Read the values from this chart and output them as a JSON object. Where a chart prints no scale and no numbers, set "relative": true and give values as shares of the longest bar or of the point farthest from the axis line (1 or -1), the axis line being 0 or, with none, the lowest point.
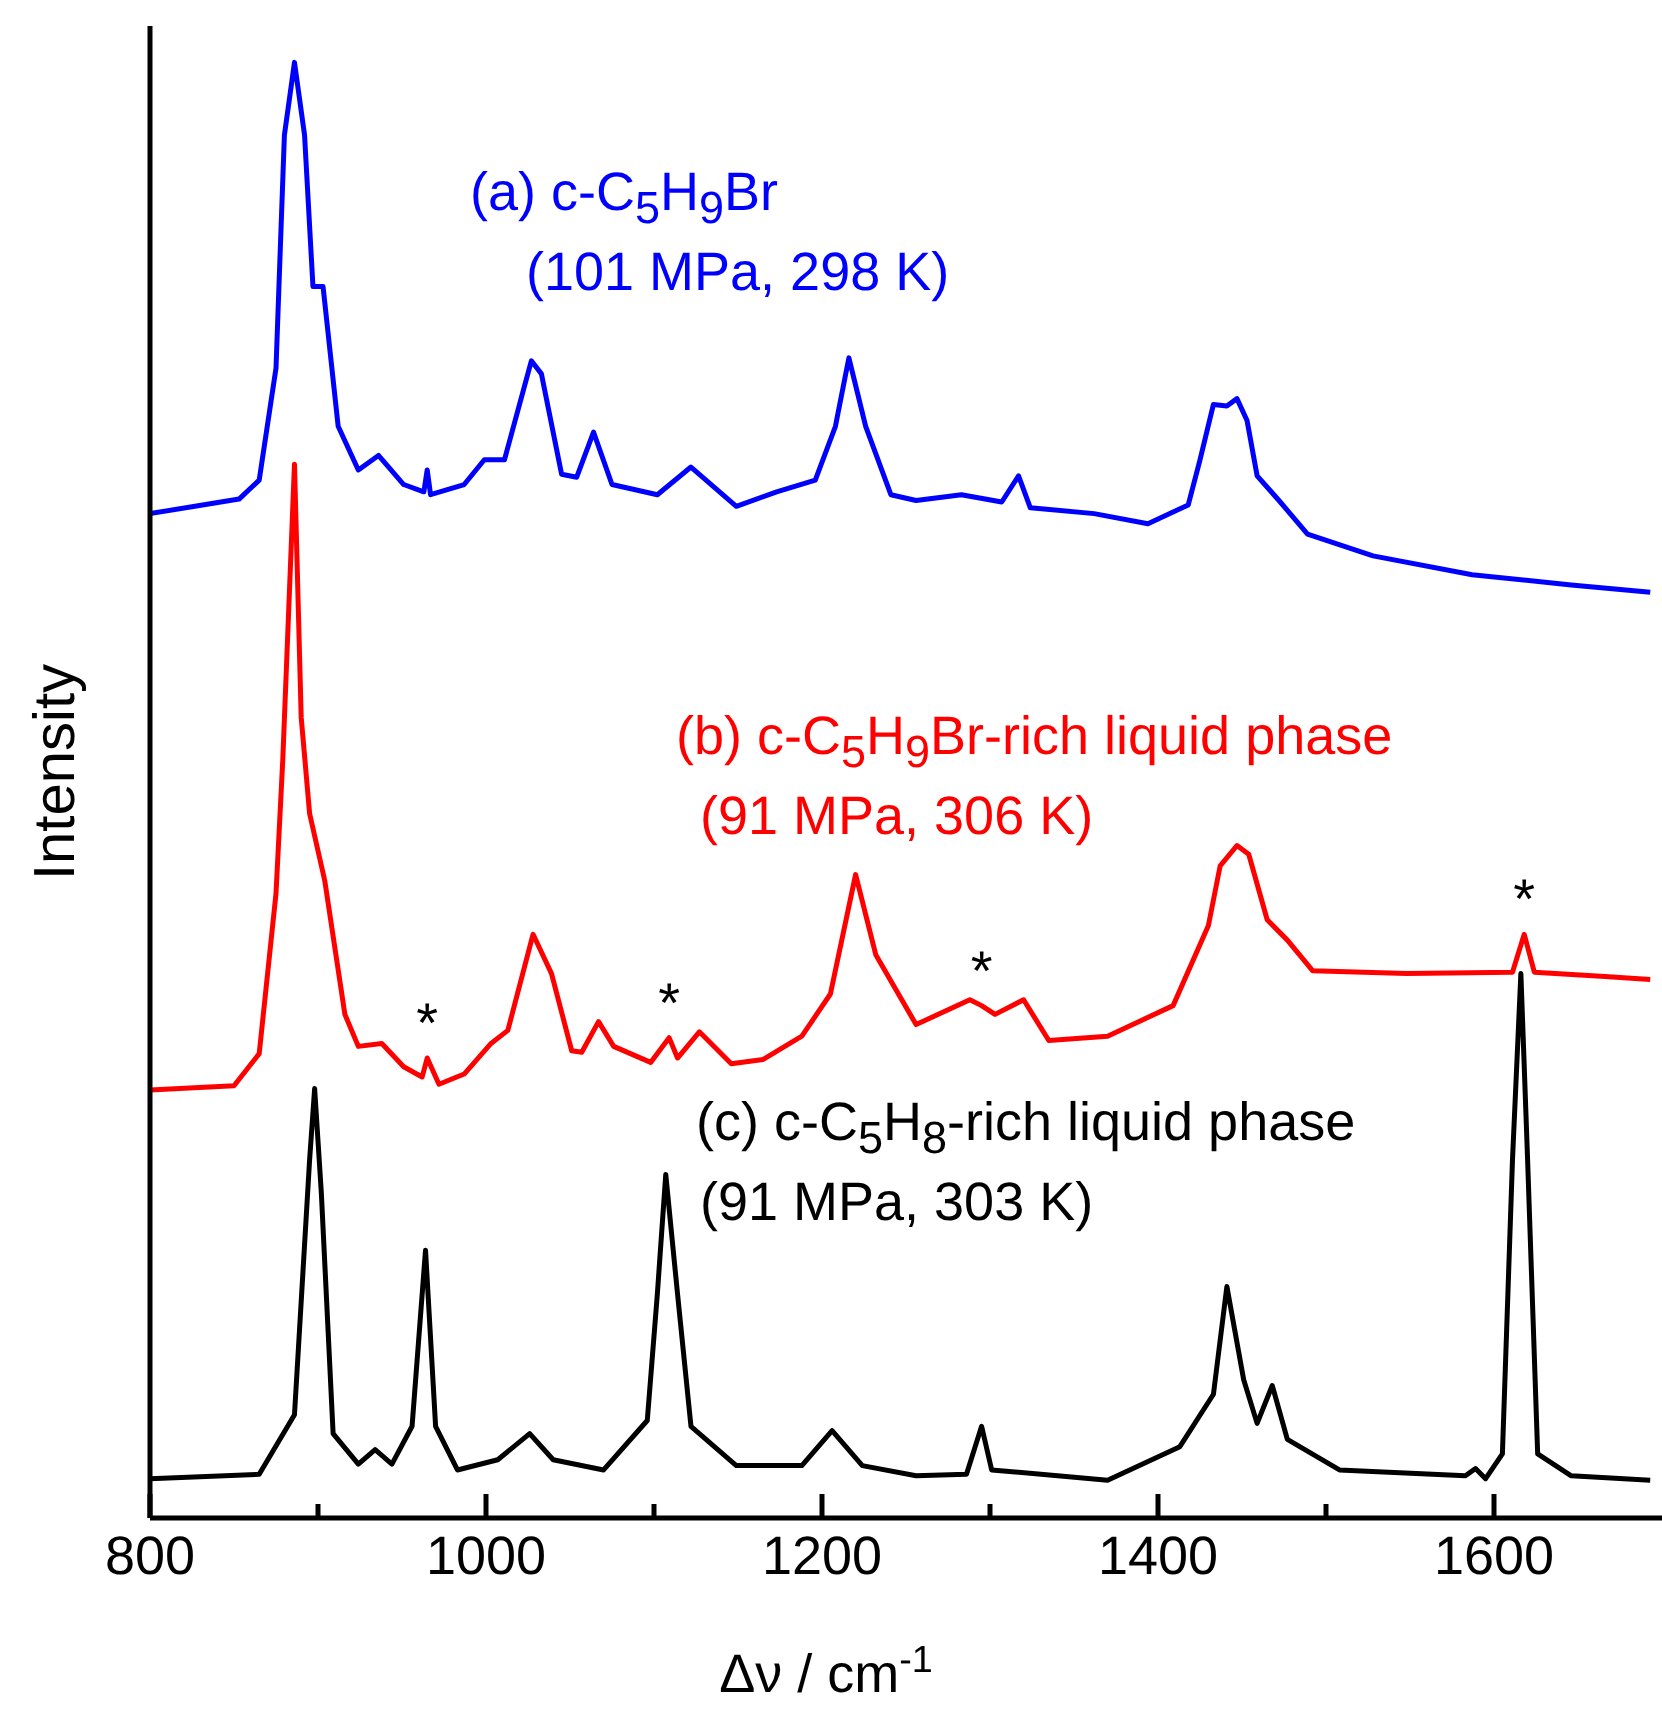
{
  "chart_data": {
    "type": "line",
    "relative": true,
    "xlabel": "Δν / cm$^{-1}$",
    "ylabel": "Intensity",
    "xlim": [
      800,
      1700
    ],
    "xticks": [
      800,
      {
        "value": 900,
        "label": null
      },
      1000,
      {
        "value": 1100,
        "label": null
      },
      1200,
      {
        "value": 1300,
        "label": null
      },
      1400,
      {
        "value": 1500,
        "label": null
      },
      1600
    ],
    "line_style": "solid",
    "marker": "none",
    "annotations": [
      {
        "text": "*",
        "x": 965,
        "y": 0.316
      },
      {
        "text": "*",
        "x": 1109,
        "y": 0.33
      },
      {
        "text": "*",
        "x": 1295,
        "y": 0.352
      },
      {
        "text": "*",
        "x": 1618,
        "y": 0.401
      }
    ],
    "series": [
      {
        "name": "(a) c-C$_{5}$H$_{9}$Br\n(101 MPa, 298 K)",
        "color": "#0000ff",
        "x": [
          800,
          853,
          865,
          875,
          880,
          886,
          892,
          897,
          903,
          912,
          924,
          936,
          951,
          963,
          965,
          967,
          987,
          999,
          1011,
          1027,
          1033,
          1045,
          1054,
          1064,
          1075,
          1102,
          1122,
          1149,
          1173,
          1196,
          1208,
          1216,
          1226,
          1241,
          1256,
          1283,
          1307,
          1317,
          1324,
          1362,
          1394,
          1418,
          1425,
          1433,
          1441,
          1447,
          1453,
          1459,
          1472,
          1489,
          1528,
          1587,
          1646,
          1693
        ],
        "values": [
          0.69,
          0.7,
          0.713,
          0.79,
          0.95,
          1.0,
          0.95,
          0.846,
          0.846,
          0.75,
          0.72,
          0.73,
          0.71,
          0.705,
          0.72,
          0.703,
          0.71,
          0.727,
          0.727,
          0.795,
          0.786,
          0.717,
          0.715,
          0.746,
          0.71,
          0.703,
          0.722,
          0.695,
          0.705,
          0.713,
          0.75,
          0.797,
          0.75,
          0.703,
          0.699,
          0.703,
          0.698,
          0.716,
          0.694,
          0.69,
          0.683,
          0.696,
          0.727,
          0.765,
          0.764,
          0.769,
          0.754,
          0.716,
          0.699,
          0.676,
          0.661,
          0.648,
          0.641,
          0.636
        ]
      },
      {
        "name": "(b) c-C$_{5}$H$_{9}$Br-rich liquid phase\n(91 MPa, 306 K)",
        "color": "#ff0000",
        "x": [
          800,
          850,
          865,
          875,
          879,
          886,
          890,
          895,
          904,
          916,
          924,
          938,
          951,
          962,
          965,
          972,
          987,
          1003,
          1013,
          1028,
          1039,
          1051,
          1057,
          1067,
          1076,
          1098,
          1109,
          1114,
          1127,
          1146,
          1165,
          1188,
          1205,
          1220,
          1232,
          1256,
          1288,
          1295,
          1303,
          1320,
          1335,
          1370,
          1409,
          1430,
          1437,
          1447,
          1454,
          1465,
          1477,
          1492,
          1548,
          1611,
          1618,
          1624,
          1666,
          1693
        ],
        "values": [
          0.294,
          0.297,
          0.319,
          0.429,
          0.52,
          0.724,
          0.55,
          0.484,
          0.438,
          0.346,
          0.324,
          0.326,
          0.31,
          0.303,
          0.316,
          0.298,
          0.305,
          0.326,
          0.335,
          0.401,
          0.374,
          0.321,
          0.32,
          0.341,
          0.324,
          0.313,
          0.33,
          0.316,
          0.334,
          0.312,
          0.315,
          0.331,
          0.36,
          0.442,
          0.387,
          0.339,
          0.356,
          0.352,
          0.346,
          0.356,
          0.328,
          0.331,
          0.352,
          0.407,
          0.448,
          0.462,
          0.456,
          0.411,
          0.397,
          0.376,
          0.374,
          0.375,
          0.401,
          0.375,
          0.372,
          0.37
        ]
      },
      {
        "name": "(c) c-C$_{5}$H$_{8}$-rich liquid phase\n(91 MPa, 303 K)",
        "color": "#000000",
        "x": [
          800,
          865,
          886,
          895,
          898,
          902,
          909,
          924,
          934,
          944,
          956,
          964,
          970,
          983,
          1007,
          1026,
          1040,
          1070,
          1096,
          1102,
          1107,
          1114,
          1122,
          1149,
          1188,
          1206,
          1224,
          1256,
          1286,
          1295,
          1301,
          1370,
          1413,
          1433,
          1441,
          1451,
          1459,
          1468,
          1477,
          1508,
          1583,
          1589,
          1595,
          1605,
          1611,
          1616,
          1620,
          1626,
          1646,
          1693
        ],
        "values": [
          0.027,
          0.03,
          0.071,
          0.246,
          0.295,
          0.223,
          0.058,
          0.037,
          0.047,
          0.037,
          0.063,
          0.184,
          0.063,
          0.033,
          0.04,
          0.058,
          0.04,
          0.033,
          0.067,
          0.154,
          0.236,
          0.154,
          0.063,
          0.036,
          0.036,
          0.06,
          0.036,
          0.029,
          0.03,
          0.063,
          0.033,
          0.026,
          0.049,
          0.085,
          0.159,
          0.095,
          0.065,
          0.091,
          0.054,
          0.033,
          0.029,
          0.034,
          0.027,
          0.044,
          0.246,
          0.374,
          0.246,
          0.044,
          0.029,
          0.026
        ]
      }
    ]
  }
}
